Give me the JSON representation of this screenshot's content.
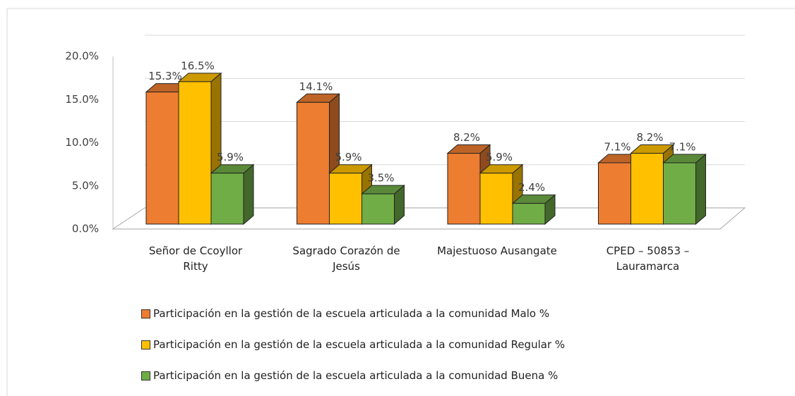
{
  "chart_data": {
    "type": "bar3d",
    "categories": [
      "Señor de Ccoyllor Ritty",
      "Sagrado Corazón de Jesús",
      "Majestuoso Ausangate",
      "CPED – 50853 – Lauramarca"
    ],
    "series": [
      {
        "name": "Participación en la gestión de la escuela articulada a la comunidad Malo %",
        "color": "#ED7D31",
        "values": [
          15.3,
          14.1,
          8.2,
          7.1
        ],
        "value_labels": [
          "15.3%",
          "14.1%",
          "8.2%",
          "7.1%"
        ]
      },
      {
        "name": "Participación en la gestión de la escuela articulada a la comunidad Regular %",
        "color": "#FFC000",
        "values": [
          16.5,
          5.9,
          5.9,
          8.2
        ],
        "value_labels": [
          "16.5%",
          "5.9%",
          "5.9%",
          "8.2%"
        ]
      },
      {
        "name": "Participación en la gestión de la escuela articulada a la comunidad Buena %",
        "color": "#70AD47",
        "values": [
          5.9,
          3.5,
          2.4,
          7.1
        ],
        "value_labels": [
          "5.9%",
          "3.5%",
          "2.4%",
          "7.1%"
        ]
      }
    ],
    "ylim": [
      0,
      20
    ],
    "yticks": [
      {
        "value": 0,
        "label": "0.0%"
      },
      {
        "value": 5,
        "label": "5.0%"
      },
      {
        "value": 10,
        "label": "10.0%"
      },
      {
        "value": 15,
        "label": "15.0%"
      },
      {
        "value": 20,
        "label": "20.0%"
      }
    ],
    "grid": true
  }
}
